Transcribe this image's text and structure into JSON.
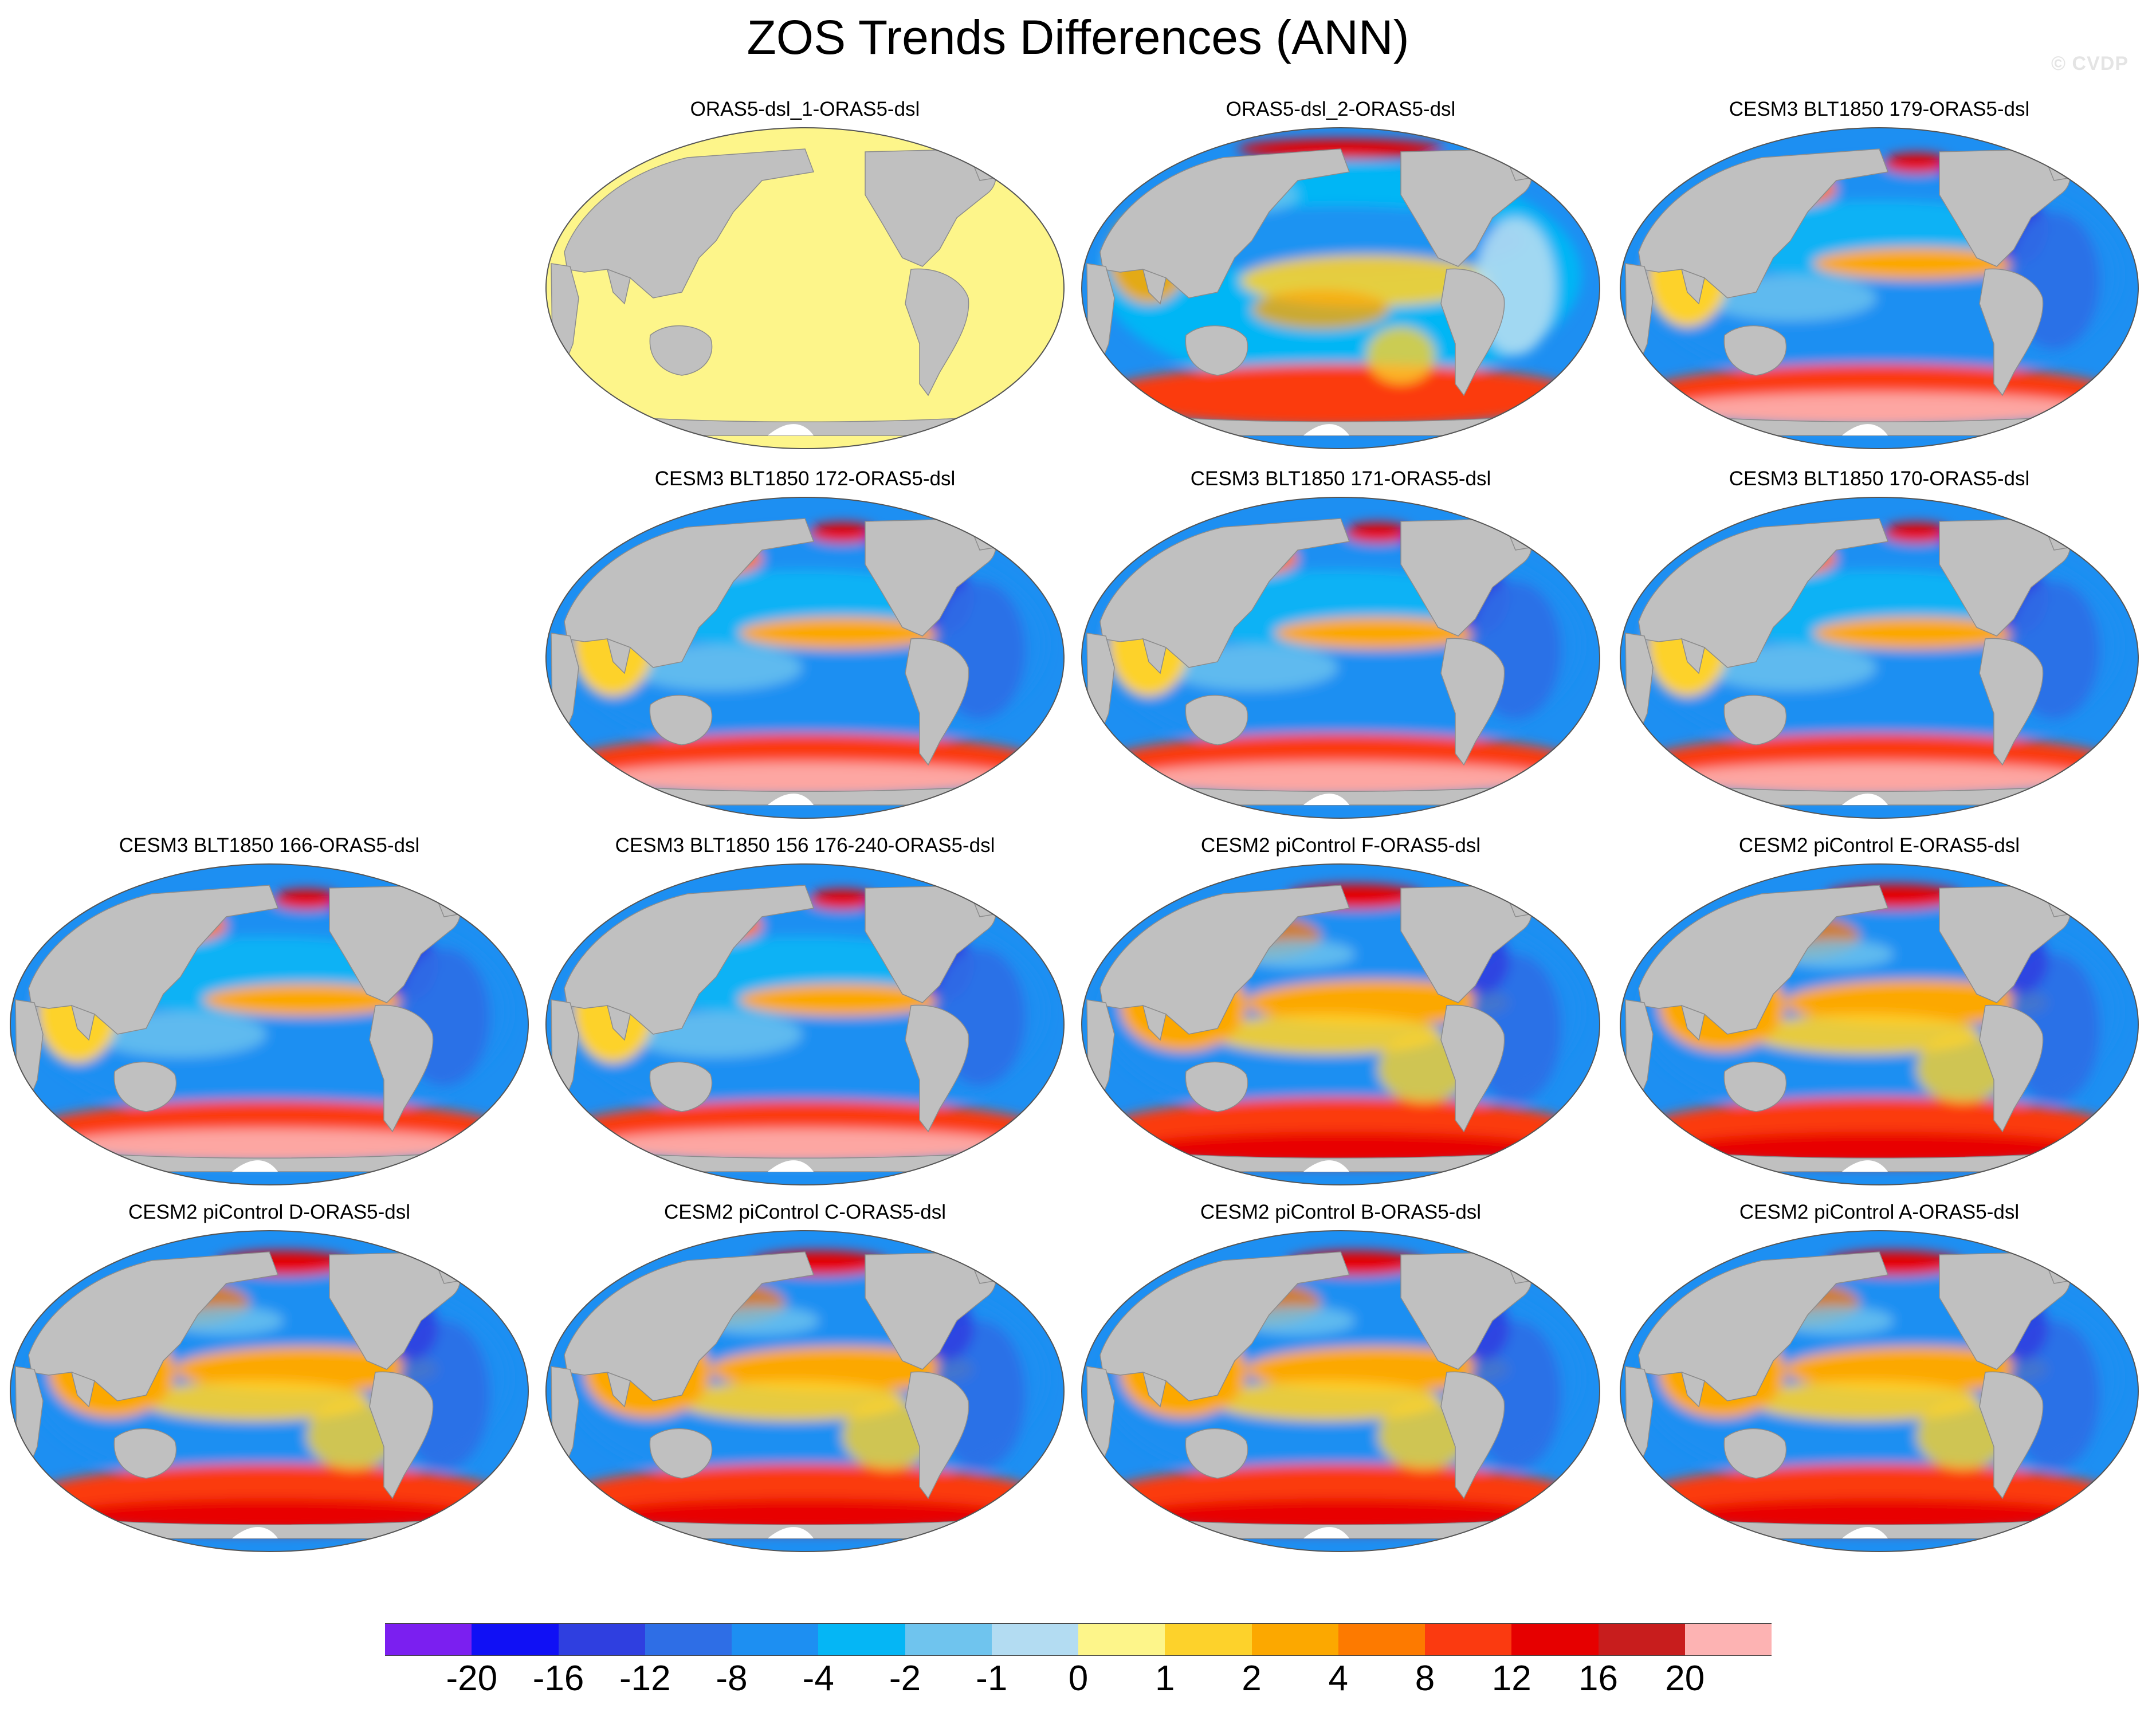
{
  "title": "ZOS Trends Differences (ANN)",
  "watermark": "© CVDP",
  "panels": [
    {
      "id": "p1",
      "title": "ORAS5-dsl_1-ORAS5-dsl",
      "pattern": "uniform-zero"
    },
    {
      "id": "p2",
      "title": "ORAS5-dsl_2-ORAS5-dsl",
      "pattern": "noisy"
    },
    {
      "id": "p3",
      "title": "CESM3 BLT1850 179-ORAS5-dsl",
      "pattern": "model-blue"
    },
    {
      "id": "p4",
      "title": "CESM3 BLT1850 172-ORAS5-dsl",
      "pattern": "model-blue"
    },
    {
      "id": "p5",
      "title": "CESM3 BLT1850 171-ORAS5-dsl",
      "pattern": "model-blue"
    },
    {
      "id": "p6",
      "title": "CESM3 BLT1850 170-ORAS5-dsl",
      "pattern": "model-blue"
    },
    {
      "id": "p7",
      "title": "CESM3 BLT1850 166-ORAS5-dsl",
      "pattern": "model-blue"
    },
    {
      "id": "p8",
      "title": "CESM3 BLT1850 156 176-240-ORAS5-dsl",
      "pattern": "model-blue"
    },
    {
      "id": "p9",
      "title": "CESM2 piControl F-ORAS5-dsl",
      "pattern": "model-warm"
    },
    {
      "id": "p10",
      "title": "CESM2 piControl E-ORAS5-dsl",
      "pattern": "model-warm"
    },
    {
      "id": "p11",
      "title": "CESM2 piControl D-ORAS5-dsl",
      "pattern": "model-warm"
    },
    {
      "id": "p12",
      "title": "CESM2 piControl C-ORAS5-dsl",
      "pattern": "model-warm"
    },
    {
      "id": "p13",
      "title": "CESM2 piControl B-ORAS5-dsl",
      "pattern": "model-warm"
    },
    {
      "id": "p14",
      "title": "CESM2 piControl A-ORAS5-dsl",
      "pattern": "model-warm"
    }
  ],
  "colorbar": {
    "labels": [
      "-20",
      "-16",
      "-12",
      "-8",
      "-4",
      "-2",
      "-1",
      "0",
      "1",
      "2",
      "4",
      "8",
      "12",
      "16",
      "20"
    ],
    "colors": [
      "#7b1ff0",
      "#1010f5",
      "#2f3fe0",
      "#2e6ee6",
      "#1d8ff2",
      "#05b6f5",
      "#6fc4ee",
      "#b3dcf2",
      "#fdf58a",
      "#fdd22b",
      "#fca800",
      "#fd7a00",
      "#fb3a10",
      "#e60000",
      "#c81d1d",
      "#fdb3b3"
    ]
  },
  "colors": {
    "land": "#c0c0c0",
    "ocean_zero": "#fdf58a",
    "background": "#ffffff"
  }
}
